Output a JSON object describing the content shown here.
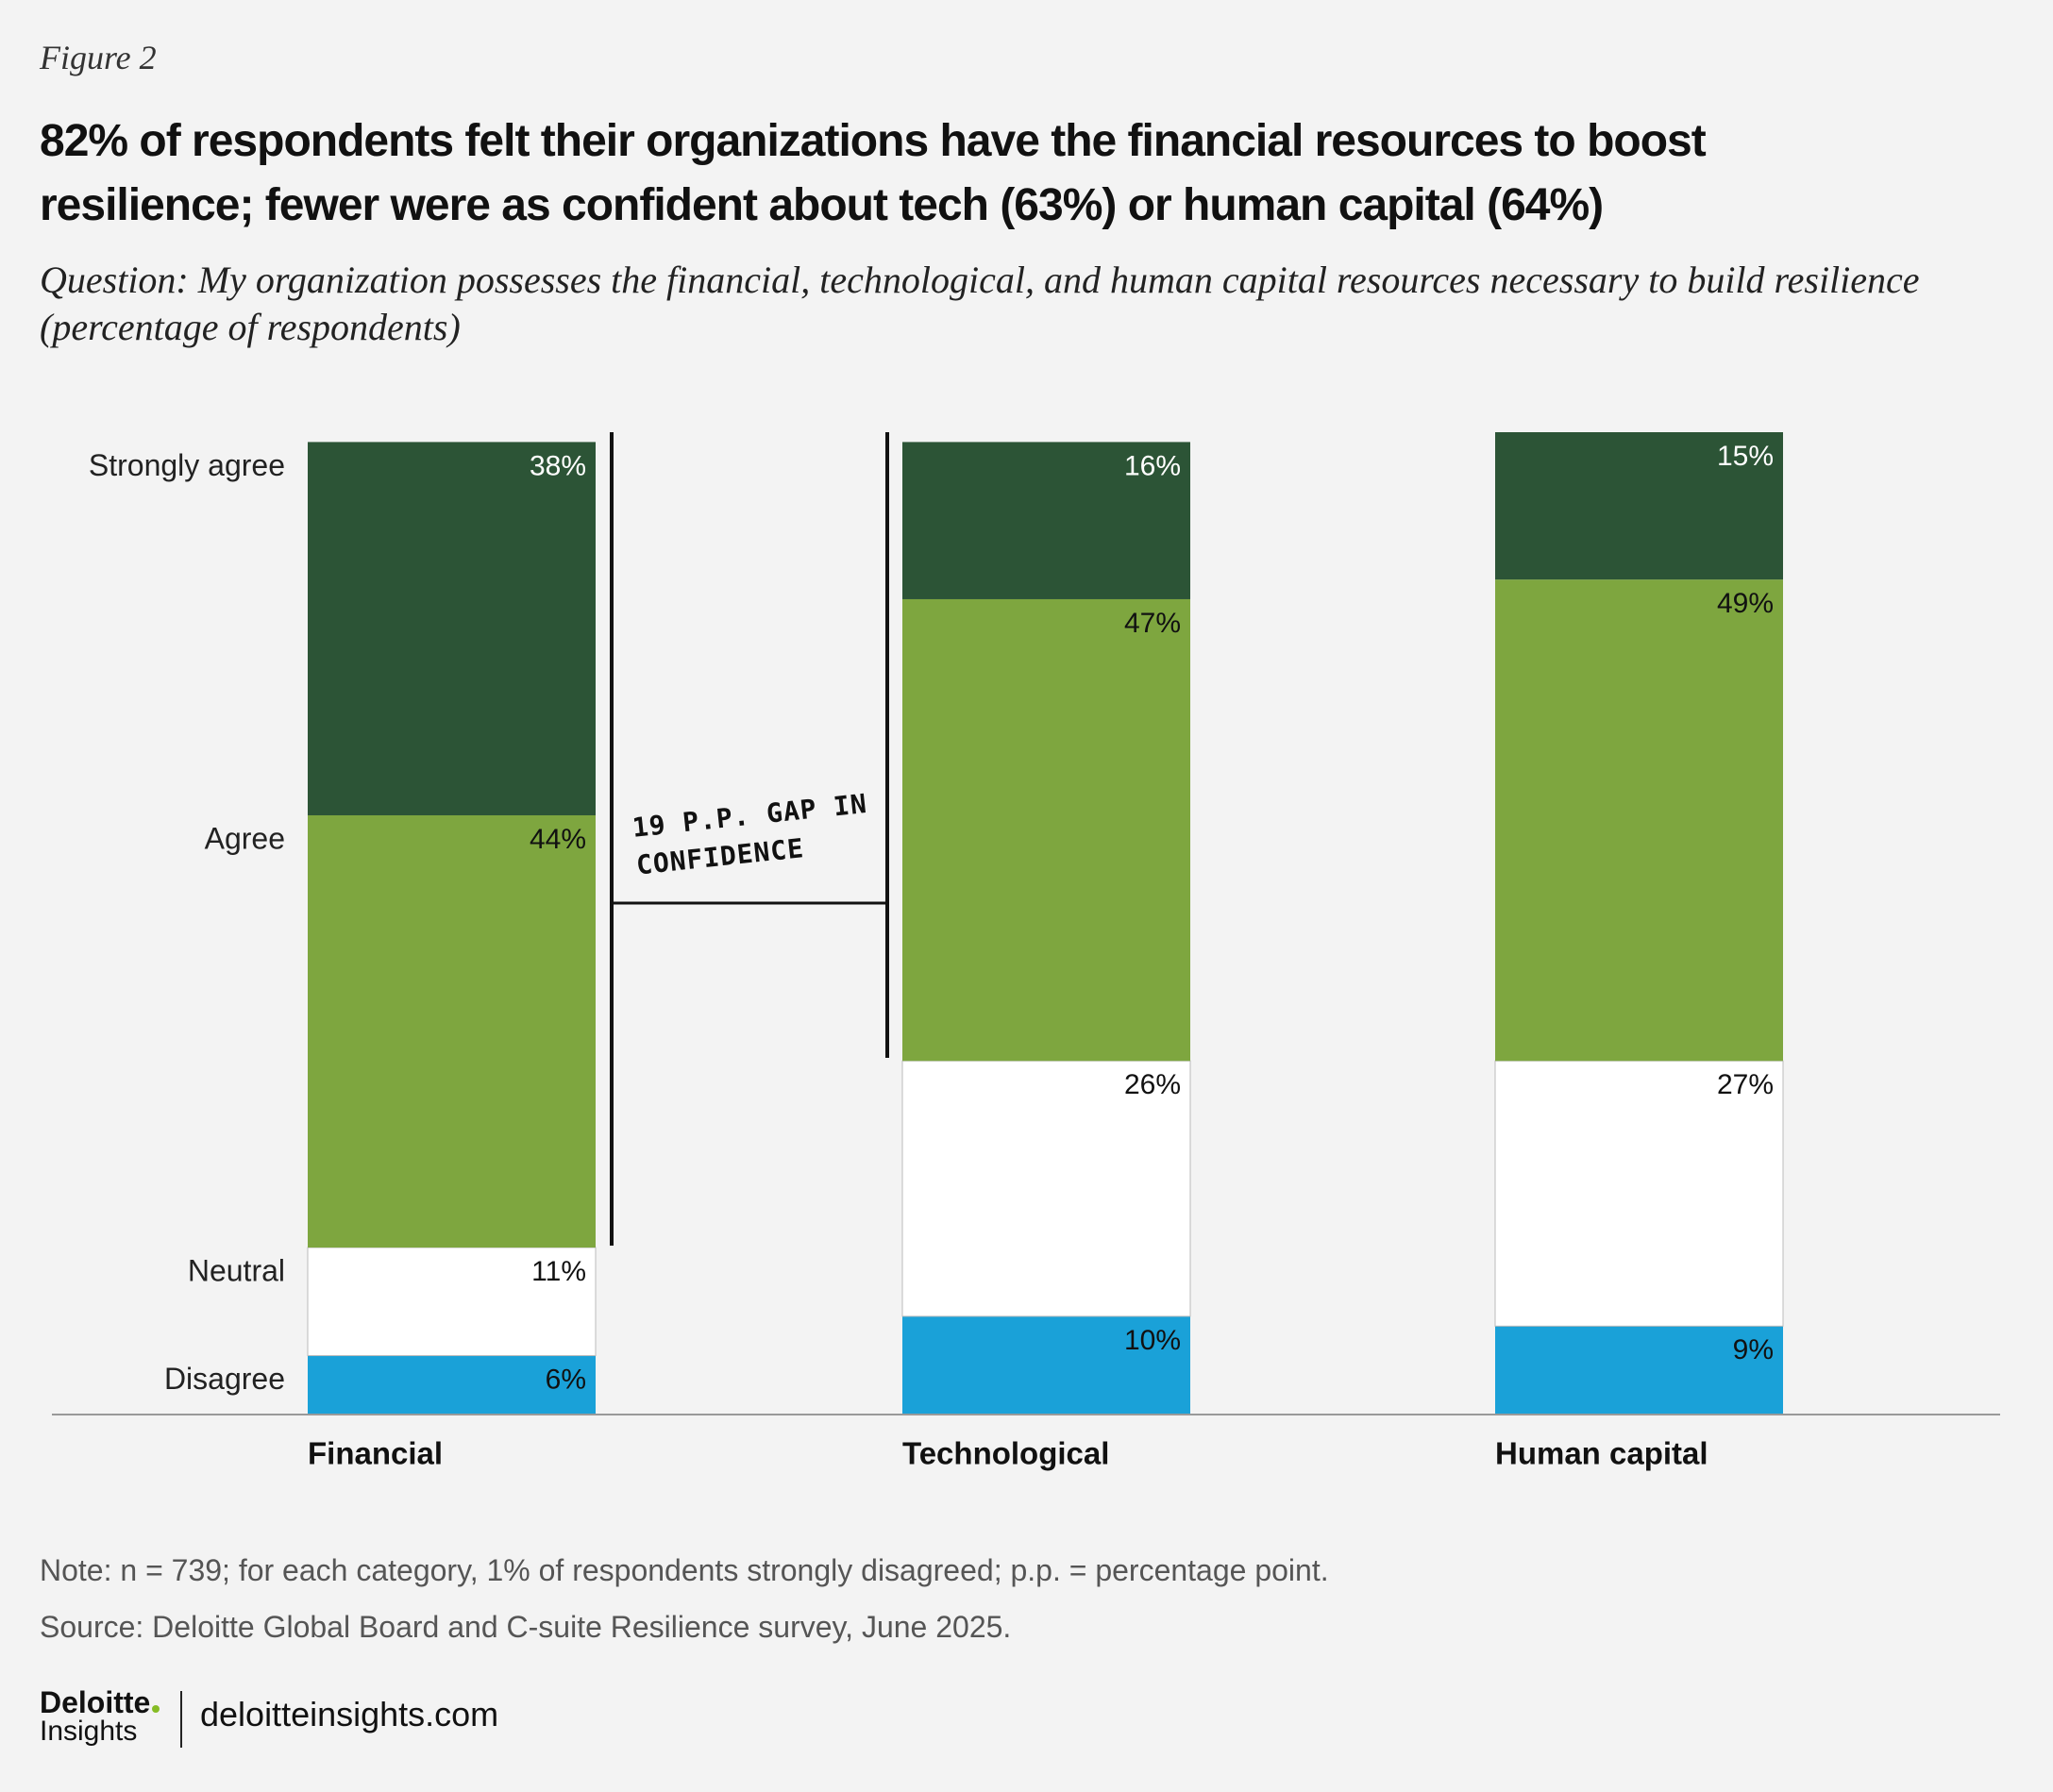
{
  "chart_data": {
    "type": "stacked_bar",
    "figure_label": "Figure 2",
    "title": "82% of respondents felt their organizations have the financial resources to boost resilience; fewer were as confident about tech (63%) or human capital (64%)",
    "subtitle": "Question: My organization possesses the financial, technological, and human capital resources necessary to build resilience (percentage of respondents)",
    "categories": [
      "Financial",
      "Technological",
      "Human capital"
    ],
    "series": [
      {
        "name": "Disagree",
        "color": "#1aa1d8",
        "label_color": "#111111",
        "values": [
          6,
          10,
          9
        ],
        "value_labels": [
          "6%",
          "10%",
          "9%"
        ]
      },
      {
        "name": "Neutral",
        "color": "#ffffff",
        "label_color": "#111111",
        "values": [
          11,
          26,
          27
        ],
        "value_labels": [
          "11%",
          "26%",
          "27%"
        ]
      },
      {
        "name": "Agree",
        "color": "#7ea63f",
        "label_color": "#111111",
        "values": [
          44,
          47,
          49
        ],
        "value_labels": [
          "44%",
          "47%",
          "49%"
        ]
      },
      {
        "name": "Strongly agree",
        "color": "#2c5436",
        "label_color": "#ffffff",
        "values": [
          38,
          16,
          15
        ],
        "value_labels": [
          "38%",
          "16%",
          "15%"
        ]
      }
    ],
    "ylim": [
      0,
      100
    ],
    "annotation": "19 P.P. GAP IN CONFIDENCE",
    "note": "Note: n = 739; for each category, 1% of respondents strongly disagreed; p.p. = percentage point.",
    "source": "Source: Deloitte Global Board and C-suite Resilience survey, June 2025."
  },
  "footer": {
    "brand": "Deloitte",
    "brand_sub": "Insights",
    "url": "deloitteinsights.com"
  }
}
